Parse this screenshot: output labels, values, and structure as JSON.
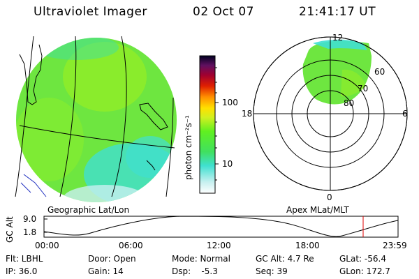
{
  "header": {
    "instrument": "Ultraviolet Imager",
    "date": "02 Oct 07",
    "time": "21:41:17 UT"
  },
  "colorbar": {
    "unit_label": "photon cm⁻²s⁻¹",
    "ticks": [
      "100",
      "10"
    ]
  },
  "polar_plot": {
    "mlt_labels": [
      "12",
      "18",
      "6",
      "0"
    ],
    "lat_labels": [
      "60",
      "70",
      "80"
    ]
  },
  "labels": {
    "geographic": "Geographic Lat/Lon",
    "apex": "Apex MLat/MLT"
  },
  "altitude_plot": {
    "ylabel": "GC Alt",
    "yticks": [
      "9.0",
      "1.8"
    ],
    "xticks": [
      "00:00",
      "06:00",
      "12:00",
      "18:00",
      "23:59"
    ]
  },
  "status": {
    "flt": "Flt: LBHL",
    "ip": "IP: 36.0",
    "door": "Door: Open",
    "gain": "Gain: 14",
    "mode": "Mode: Normal",
    "dsp": "Dsp:    -5.3",
    "gcalt": "GC Alt: 4.7 Re",
    "seq": "Seq: 39",
    "glat": "GLat: -56.4",
    "glon": "GLon: 172.7"
  },
  "colors": {
    "aurora_green": "#40e040",
    "aurora_lime": "#9cf020",
    "aurora_cyan": "#40e0d0",
    "cursor_red": "#e00000"
  }
}
